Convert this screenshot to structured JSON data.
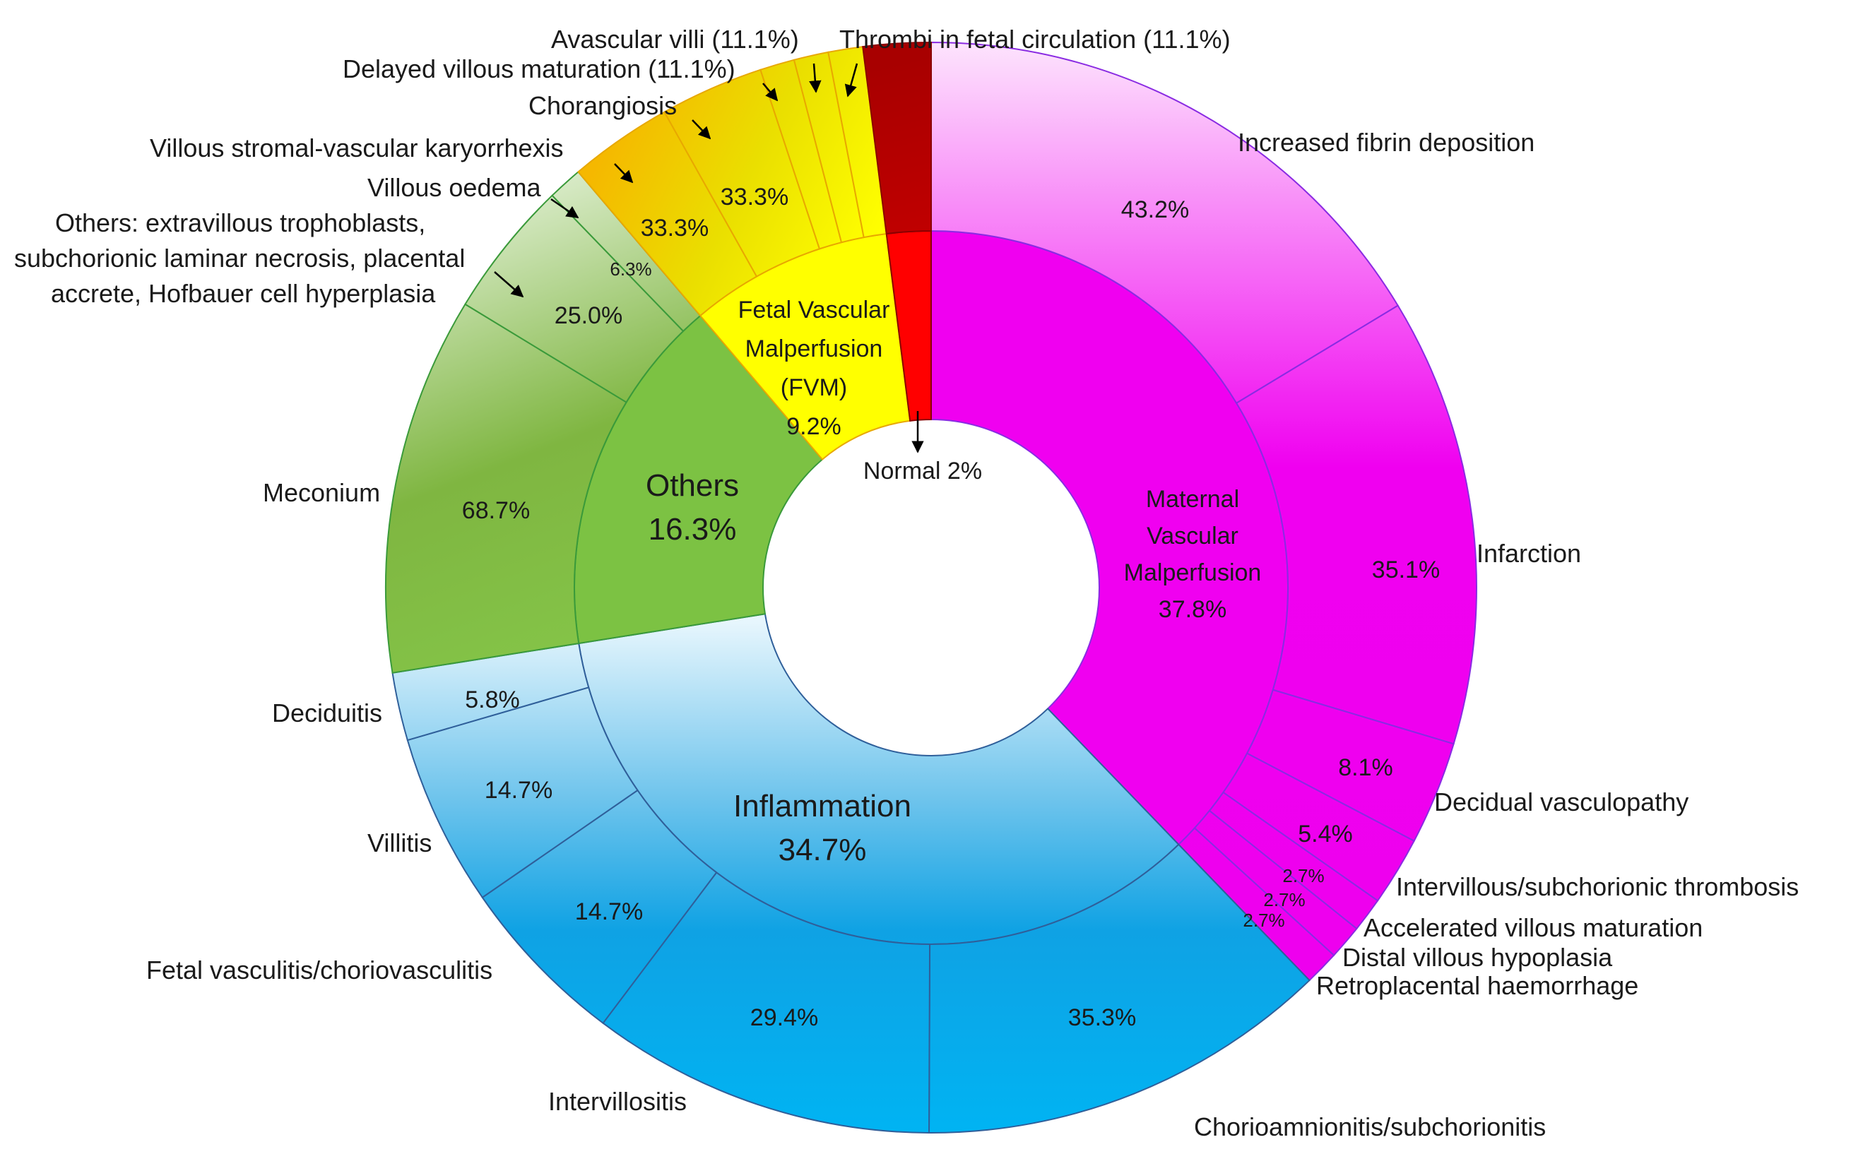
{
  "chart_data": {
    "type": "sunburst",
    "inner_ring": [
      {
        "key": "mvm",
        "lines": [
          "Maternal",
          "Vascular",
          "Malperfusion",
          "37.8%"
        ],
        "value": 37.8,
        "color": "#f000f0"
      },
      {
        "key": "inf",
        "lines": [
          "Inflammation",
          "34.7%"
        ],
        "value": 34.7,
        "color": "#1ea7e8"
      },
      {
        "key": "oth",
        "lines": [
          "Others",
          "16.3%"
        ],
        "value": 16.3,
        "color": "#7cc243"
      },
      {
        "key": "fvm",
        "lines": [
          "Fetal Vascular",
          "Malperfusion",
          "(FVM)",
          "9.2%"
        ],
        "value": 9.2,
        "color": "#ffff00"
      },
      {
        "key": "nor",
        "label": "Normal 2%",
        "value": 2.0,
        "color": "#ff0000"
      }
    ],
    "outer_ring": [
      {
        "parent": "mvm",
        "label": "Increased fibrin deposition",
        "pct": "43.2%",
        "value": 43.2
      },
      {
        "parent": "mvm",
        "label": "Infarction",
        "pct": "35.1%",
        "value": 35.1
      },
      {
        "parent": "mvm",
        "label": "Decidual vasculopathy",
        "pct": "8.1%",
        "value": 8.1
      },
      {
        "parent": "mvm",
        "label": "Intervillous/subchorionic thrombosis",
        "pct": "5.4%",
        "value": 5.4
      },
      {
        "parent": "mvm",
        "label": "Accelerated villous maturation",
        "pct": "2.7%",
        "value": 2.7
      },
      {
        "parent": "mvm",
        "label": "Distal villous hypoplasia",
        "pct": "2.7%",
        "value": 2.7
      },
      {
        "parent": "mvm",
        "label": "Retroplacental haemorrhage",
        "pct": "2.7%",
        "value": 2.7
      },
      {
        "parent": "inf",
        "label": "Chorioamnionitis/subchorionitis",
        "pct": "35.3%",
        "value": 35.3
      },
      {
        "parent": "inf",
        "label": "Intervillositis",
        "pct": "29.4%",
        "value": 29.4
      },
      {
        "parent": "inf",
        "label": "Fetal vasculitis/choriovasculitis",
        "pct": "14.7%",
        "value": 14.7
      },
      {
        "parent": "inf",
        "label": "Villitis",
        "pct": "14.7%",
        "value": 14.7
      },
      {
        "parent": "inf",
        "label": "Deciduitis",
        "pct": "5.8%",
        "value": 5.8
      },
      {
        "parent": "oth",
        "label": "Meconium",
        "pct": "68.7%",
        "value": 68.7
      },
      {
        "parent": "oth",
        "label_lines": [
          "Others: extravillous trophoblasts,",
          "subchorionic laminar necrosis, placental",
          "accrete, Hofbauer cell hyperplasia"
        ],
        "pct": "25.0%",
        "value": 25.0
      },
      {
        "parent": "oth",
        "label": "Villous oedema",
        "pct": "6.3%",
        "value": 6.3
      },
      {
        "parent": "fvm",
        "label": "Villous stromal-vascular karyorrhexis",
        "pct": "33.3%",
        "value": 33.3
      },
      {
        "parent": "fvm",
        "label": "Chorangiosis",
        "pct": "33.3%",
        "value": 33.3
      },
      {
        "parent": "fvm",
        "label": "Delayed villous maturation (11.1%)",
        "pct": "",
        "value": 11.1
      },
      {
        "parent": "fvm",
        "label": "Avascular villi (11.1%)",
        "pct": "",
        "value": 11.1
      },
      {
        "parent": "fvm",
        "label": "Thrombi in fetal circulation (11.1%)",
        "pct": "",
        "value": 11.1
      },
      {
        "parent": "nor",
        "label": "",
        "pct": "",
        "value": 100
      }
    ]
  }
}
